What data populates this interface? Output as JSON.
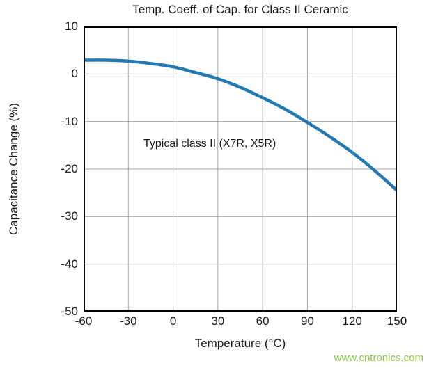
{
  "chart_data": {
    "type": "line",
    "title": "Temp. Coeff. of Cap. for Class II Ceramic",
    "xlabel": "Temperature (°C)",
    "ylabel": "Capacitance Change (%)",
    "xlim": [
      -60,
      150
    ],
    "ylim": [
      -50,
      10
    ],
    "x_ticks": [
      -60,
      -30,
      0,
      30,
      60,
      90,
      120,
      150
    ],
    "y_ticks": [
      10,
      0,
      -10,
      -20,
      -30,
      -40,
      -50
    ],
    "grid": true,
    "annotation": "Typical class II (X7R, X5R)",
    "series": [
      {
        "name": "Typical class II (X7R, X5R)",
        "color": "#2579b2",
        "x": [
          -60,
          -45,
          -30,
          -15,
          0,
          15,
          30,
          45,
          60,
          75,
          90,
          105,
          120,
          135,
          150
        ],
        "y": [
          2.9,
          2.9,
          2.7,
          2.2,
          1.5,
          0.3,
          -1.0,
          -2.8,
          -5.0,
          -7.4,
          -10.2,
          -13.2,
          -16.5,
          -20.3,
          -24.5
        ]
      }
    ]
  },
  "watermark": {
    "text": "www.cntronics.com",
    "color": "#8dc63f"
  },
  "colors": {
    "grid": "#a6a6a6",
    "axis": "#000000",
    "background": "#ffffff"
  }
}
